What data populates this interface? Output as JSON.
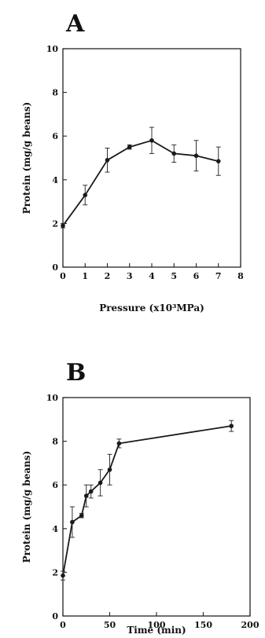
{
  "chart_data": [
    {
      "type": "line",
      "panel_label": "A",
      "xlabel": "Pressure (x10³MPa)",
      "ylabel": "Protein (mg/g beans)",
      "xlim": [
        0,
        8
      ],
      "ylim": [
        0,
        10
      ],
      "xticks": [
        0,
        1,
        2,
        3,
        4,
        5,
        6,
        7,
        8
      ],
      "yticks": [
        0,
        2,
        4,
        6,
        8,
        10
      ],
      "x_tick_labels": [
        "0",
        "1",
        "2",
        "3",
        "4",
        "5",
        "6",
        "7",
        "8"
      ],
      "y_tick_labels": [
        "0",
        "2",
        "4",
        "6",
        "8",
        "10"
      ],
      "grid": false,
      "series": [
        {
          "x": [
            0,
            1,
            2,
            3,
            4,
            5,
            6,
            7
          ],
          "values": [
            1.9,
            3.3,
            4.9,
            5.5,
            5.8,
            5.2,
            5.1,
            4.85
          ],
          "errors": [
            0.1,
            0.45,
            0.55,
            0.1,
            0.6,
            0.4,
            0.7,
            0.65
          ]
        }
      ]
    },
    {
      "type": "line",
      "panel_label": "B",
      "xlabel": "Time (min)",
      "ylabel": "Protein (mg/g beans)",
      "xlim": [
        0,
        200
      ],
      "ylim": [
        0,
        10
      ],
      "xticks": [
        0,
        50,
        100,
        150,
        200
      ],
      "yticks": [
        0,
        2,
        4,
        6,
        8,
        10
      ],
      "x_tick_labels": [
        "0",
        "50",
        "100",
        "150",
        "200"
      ],
      "y_tick_labels": [
        "0",
        "2",
        "4",
        "6",
        "8",
        "10"
      ],
      "grid": false,
      "series": [
        {
          "x": [
            0,
            10,
            20,
            25,
            30,
            40,
            50,
            60,
            180
          ],
          "values": [
            1.85,
            4.3,
            4.6,
            5.5,
            5.7,
            6.1,
            6.7,
            7.9,
            8.7
          ],
          "errors": [
            0.2,
            0.7,
            0.1,
            0.5,
            0.3,
            0.6,
            0.7,
            0.2,
            0.25
          ]
        }
      ]
    }
  ]
}
